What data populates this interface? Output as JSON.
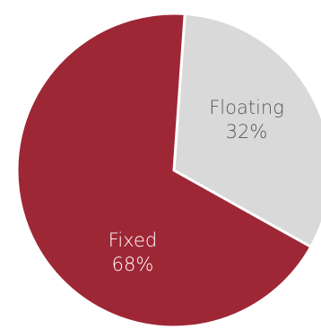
{
  "chart_data": {
    "type": "pie",
    "slices": [
      {
        "label": "Fixed",
        "value": 68,
        "display": "68%",
        "color": "#9e2736",
        "text_color": "#ffffff"
      },
      {
        "label": "Floating",
        "value": 32,
        "display": "32%",
        "color": "#d9d9d9",
        "text_color": "#595959"
      }
    ],
    "title": "",
    "legend": "none",
    "start_angle_deg": 4,
    "border_color": "#ffffff"
  }
}
